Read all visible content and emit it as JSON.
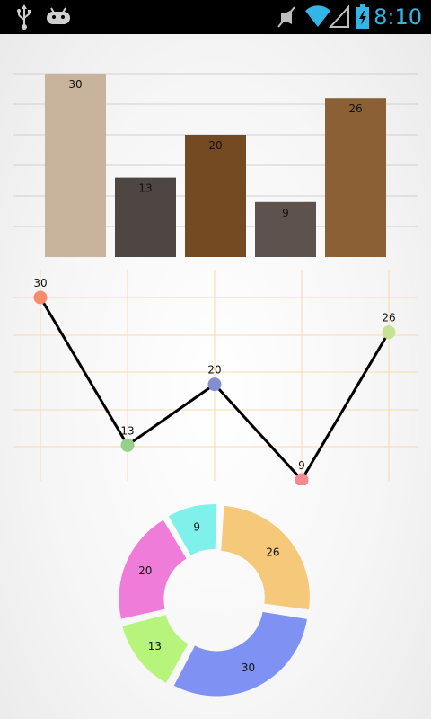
{
  "status_bar": {
    "time": "8:10",
    "icons": [
      "usb-icon",
      "android-icon",
      "mute-icon",
      "wifi-icon",
      "signal-icon",
      "battery-charging-icon"
    ],
    "accent_color": "#33b5e5"
  },
  "chart_data": [
    {
      "type": "bar",
      "categories": [
        "",
        "",
        "",
        "",
        ""
      ],
      "values": [
        30,
        13,
        20,
        9,
        26
      ],
      "data_labels": [
        "30",
        "13",
        "20",
        "9",
        "26"
      ],
      "colors": [
        "#c8b49c",
        "#4e4643",
        "#744a22",
        "#5e524d",
        "#8c6035"
      ],
      "ylim": [
        0,
        30
      ],
      "grid": true,
      "title": "",
      "xlabel": "",
      "ylabel": ""
    },
    {
      "type": "line",
      "x": [
        1,
        2,
        3,
        4,
        5
      ],
      "values": [
        30,
        13,
        20,
        9,
        26
      ],
      "data_labels": [
        "30",
        "13",
        "20",
        "9",
        "26"
      ],
      "point_colors": [
        "#f88b6d",
        "#98cf8d",
        "#8390cf",
        "#f48a93",
        "#c5e392"
      ],
      "line_color": "#000000",
      "grid_color": "#f8d9a8",
      "grid": true,
      "title": "",
      "xlabel": "",
      "ylabel": ""
    },
    {
      "type": "pie",
      "donut": true,
      "values": [
        26,
        30,
        13,
        20,
        9
      ],
      "data_labels": [
        "26",
        "30",
        "13",
        "20",
        "9"
      ],
      "colors": [
        "#f5c87a",
        "#7f92f4",
        "#b6f47b",
        "#f07cda",
        "#7ff0ea"
      ],
      "title": ""
    }
  ]
}
